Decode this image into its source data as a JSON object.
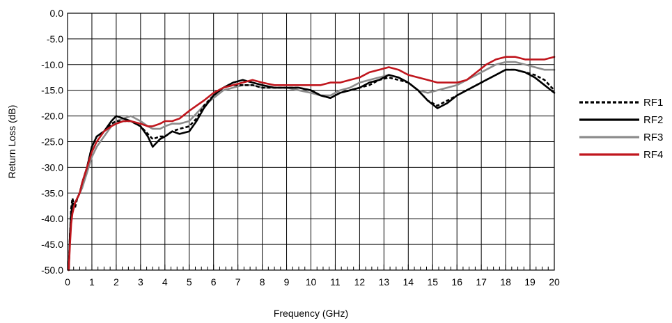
{
  "chart_data": {
    "type": "line",
    "title": "",
    "xlabel": "Frequency (GHz)",
    "ylabel": "Return Loss (dB)",
    "xlim": [
      0,
      20
    ],
    "ylim": [
      -50,
      0
    ],
    "x_ticks": [
      0,
      1,
      2,
      3,
      4,
      5,
      6,
      7,
      8,
      9,
      10,
      11,
      12,
      13,
      14,
      15,
      16,
      17,
      18,
      19,
      20
    ],
    "x_tick_labels": [
      "0",
      "1",
      "2",
      "3",
      "4",
      "5",
      "6",
      "7",
      "8",
      "9",
      "10",
      "11",
      "12",
      "13",
      "14",
      "15",
      "16",
      "17",
      "18",
      "19",
      "20"
    ],
    "y_ticks": [
      0,
      -5,
      -10,
      -15,
      -20,
      -25,
      -30,
      -35,
      -40,
      -45,
      -50
    ],
    "y_tick_labels": [
      "0.0",
      "-5.0",
      "-10.0",
      "-15.0",
      "-20.0",
      "-25.0",
      "-30.0",
      "-35.0",
      "-40.0",
      "-45.0",
      "-50.0"
    ],
    "x_minor_step": 0.25,
    "grid": true,
    "legend_position": "right",
    "series": [
      {
        "name": "RF1",
        "color": "#000000",
        "style": "dashed",
        "x": [
          0.05,
          0.1,
          0.15,
          0.2,
          0.3,
          0.4,
          0.5,
          0.6,
          0.8,
          1.0,
          1.2,
          1.5,
          1.8,
          2.0,
          2.3,
          2.6,
          3.0,
          3.3,
          3.5,
          3.8,
          4.0,
          4.3,
          4.6,
          5.0,
          5.3,
          5.6,
          6.0,
          6.4,
          6.8,
          7.2,
          7.6,
          8.0,
          8.5,
          9.0,
          9.5,
          10.0,
          10.4,
          10.8,
          11.2,
          11.6,
          12.0,
          12.4,
          12.8,
          13.2,
          13.6,
          14.0,
          14.4,
          14.8,
          15.2,
          15.6,
          16.0,
          16.4,
          16.8,
          17.2,
          17.6,
          18.0,
          18.4,
          18.8,
          19.2,
          19.6,
          20.0
        ],
        "y": [
          -50,
          -43,
          -38,
          -36,
          -38,
          -36,
          -35,
          -33,
          -30,
          -26,
          -24,
          -23,
          -21.5,
          -21,
          -21,
          -21,
          -22,
          -23.5,
          -24.5,
          -24,
          -24,
          -23,
          -22.5,
          -22,
          -20.5,
          -18,
          -16,
          -14.5,
          -14,
          -14,
          -14,
          -14.5,
          -14.5,
          -14.5,
          -14.5,
          -15,
          -16,
          -16.5,
          -15.5,
          -15,
          -14.5,
          -14,
          -13,
          -12.5,
          -13,
          -13.5,
          -15,
          -17,
          -18,
          -17,
          -16,
          -15,
          -14,
          -13,
          -12,
          -11,
          -11,
          -11.5,
          -12,
          -13,
          -15
        ]
      },
      {
        "name": "RF2",
        "color": "#000000",
        "style": "solid",
        "x": [
          0.05,
          0.1,
          0.15,
          0.2,
          0.3,
          0.4,
          0.5,
          0.6,
          0.8,
          1.0,
          1.2,
          1.5,
          1.8,
          2.0,
          2.3,
          2.6,
          3.0,
          3.3,
          3.5,
          3.8,
          4.0,
          4.3,
          4.6,
          5.0,
          5.3,
          5.6,
          6.0,
          6.4,
          6.8,
          7.2,
          7.6,
          8.0,
          8.5,
          9.0,
          9.5,
          10.0,
          10.4,
          10.8,
          11.2,
          11.6,
          12.0,
          12.4,
          12.8,
          13.2,
          13.6,
          14.0,
          14.4,
          14.8,
          15.2,
          15.6,
          16.0,
          16.4,
          16.8,
          17.2,
          17.6,
          18.0,
          18.4,
          18.8,
          19.2,
          19.6,
          20.0
        ],
        "y": [
          -50,
          -43,
          -39,
          -37,
          -37,
          -36,
          -35,
          -33,
          -30,
          -26,
          -24,
          -23,
          -21,
          -20,
          -20.5,
          -21,
          -22,
          -24,
          -26,
          -24.5,
          -24,
          -23,
          -23.5,
          -23,
          -21,
          -18.5,
          -16,
          -14.5,
          -13.5,
          -13,
          -13.5,
          -14,
          -14.5,
          -14.5,
          -14.5,
          -15,
          -16,
          -16.5,
          -15.5,
          -15,
          -14.5,
          -13.5,
          -13,
          -12,
          -12.5,
          -13.5,
          -15,
          -17,
          -18.5,
          -17.5,
          -16,
          -15,
          -14,
          -13,
          -12,
          -11,
          -11,
          -11.5,
          -12.5,
          -14,
          -15.5
        ]
      },
      {
        "name": "RF3",
        "color": "#8c8c8c",
        "style": "solid",
        "x": [
          0.05,
          0.1,
          0.15,
          0.2,
          0.3,
          0.4,
          0.5,
          0.6,
          0.8,
          1.0,
          1.2,
          1.5,
          1.8,
          2.0,
          2.3,
          2.6,
          3.0,
          3.3,
          3.5,
          3.8,
          4.0,
          4.3,
          4.6,
          5.0,
          5.3,
          5.6,
          6.0,
          6.4,
          6.8,
          7.2,
          7.6,
          8.0,
          8.5,
          9.0,
          9.5,
          10.0,
          10.4,
          10.8,
          11.2,
          11.6,
          12.0,
          12.4,
          12.8,
          13.2,
          13.6,
          14.0,
          14.4,
          14.8,
          15.2,
          15.6,
          16.0,
          16.4,
          16.8,
          17.2,
          17.6,
          18.0,
          18.4,
          18.8,
          19.2,
          19.6,
          20.0
        ],
        "y": [
          -50,
          -44,
          -40,
          -38,
          -37,
          -36,
          -35,
          -34,
          -31,
          -28,
          -26,
          -24,
          -22,
          -21,
          -20.5,
          -20,
          -21,
          -22,
          -22.5,
          -22.5,
          -22,
          -21.5,
          -21.5,
          -21,
          -19.5,
          -18,
          -16.5,
          -15,
          -14.5,
          -14,
          -14,
          -14.5,
          -14.5,
          -14.5,
          -15,
          -15.5,
          -16,
          -16,
          -15,
          -14.5,
          -13.5,
          -13,
          -12.5,
          -12,
          -12.5,
          -13.5,
          -15,
          -15.5,
          -15,
          -14.5,
          -14,
          -13,
          -12,
          -11,
          -10,
          -9.5,
          -9.5,
          -10,
          -10.5,
          -11,
          -11
        ]
      },
      {
        "name": "RF4",
        "color": "#c0161d",
        "style": "solid",
        "x": [
          0.05,
          0.1,
          0.15,
          0.2,
          0.3,
          0.4,
          0.5,
          0.6,
          0.8,
          1.0,
          1.2,
          1.5,
          1.8,
          2.0,
          2.3,
          2.6,
          3.0,
          3.3,
          3.5,
          3.8,
          4.0,
          4.3,
          4.6,
          5.0,
          5.3,
          5.6,
          6.0,
          6.4,
          6.8,
          7.2,
          7.6,
          8.0,
          8.5,
          9.0,
          9.5,
          10.0,
          10.4,
          10.8,
          11.2,
          11.6,
          12.0,
          12.4,
          12.8,
          13.2,
          13.6,
          14.0,
          14.4,
          14.8,
          15.2,
          15.6,
          16.0,
          16.4,
          16.8,
          17.2,
          17.6,
          18.0,
          18.4,
          18.8,
          19.2,
          19.6,
          20.0
        ],
        "y": [
          -50,
          -45,
          -41,
          -39,
          -37,
          -36,
          -35,
          -33,
          -30,
          -27,
          -25,
          -23,
          -22,
          -21.5,
          -21,
          -21,
          -21.5,
          -22,
          -22,
          -21.5,
          -21,
          -21,
          -20.5,
          -19,
          -18,
          -17,
          -15.5,
          -14.5,
          -14,
          -13.5,
          -13,
          -13.5,
          -14,
          -14,
          -14,
          -14,
          -14,
          -13.5,
          -13.5,
          -13,
          -12.5,
          -11.5,
          -11,
          -10.5,
          -11,
          -12,
          -12.5,
          -13,
          -13.5,
          -13.5,
          -13.5,
          -13,
          -11.5,
          -10,
          -9,
          -8.5,
          -8.5,
          -9,
          -9,
          -9,
          -8.5
        ]
      }
    ]
  }
}
